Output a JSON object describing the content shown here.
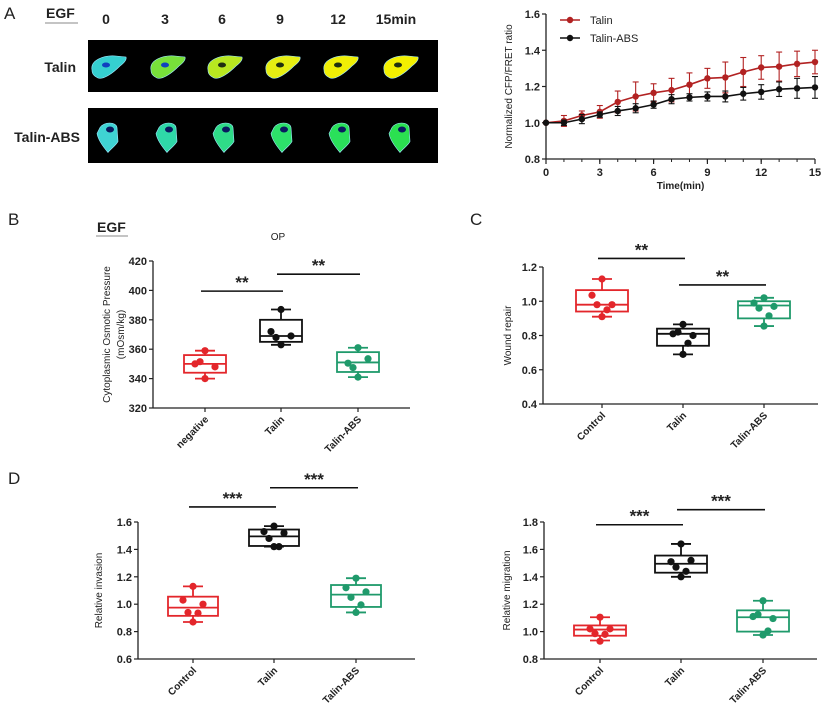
{
  "panels": {
    "a": "A",
    "b": "B",
    "c": "C",
    "d": "D"
  },
  "panel_a_images": {
    "treatment": "EGF",
    "time_labels": [
      "0",
      "3",
      "6",
      "9",
      "12",
      "15min"
    ],
    "rows": [
      {
        "label": "Talin",
        "colors": [
          "#35cfd0",
          "#78e03a",
          "#b8e820",
          "#e6ee12",
          "#f0ef05",
          "#f3f000"
        ]
      },
      {
        "label": "Talin-ABS",
        "colors": [
          "#3fd3d3",
          "#2fd8a8",
          "#2fdc88",
          "#2de06a",
          "#2ae05a",
          "#2be050"
        ]
      }
    ]
  },
  "panel_b_header": "EGF",
  "chart_data": [
    {
      "id": "fret",
      "type": "line",
      "title": "",
      "xlabel": "Time(min)",
      "ylabel": "Normalized CFP/FRET ratio",
      "xlim": [
        0,
        15
      ],
      "ylim": [
        0.8,
        1.6
      ],
      "xticks": [
        "0",
        "3",
        "6",
        "9",
        "12",
        "15"
      ],
      "yticks": [
        "0.8",
        "1.0",
        "1.2",
        "1.4",
        "1.6"
      ],
      "legend": "top-left",
      "x": [
        0,
        1,
        2,
        3,
        4,
        5,
        6,
        7,
        8,
        9,
        10,
        11,
        12,
        13,
        14,
        15
      ],
      "series": [
        {
          "name": "Talin",
          "color": "#b22222",
          "values": [
            1.0,
            1.01,
            1.04,
            1.06,
            1.115,
            1.145,
            1.165,
            1.18,
            1.21,
            1.245,
            1.25,
            1.28,
            1.305,
            1.31,
            1.325,
            1.335
          ],
          "error": [
            0,
            0.03,
            0.025,
            0.035,
            0.06,
            0.08,
            0.05,
            0.065,
            0.065,
            0.055,
            0.085,
            0.08,
            0.065,
            0.08,
            0.07,
            0.065
          ]
        },
        {
          "name": "Talin-ABS",
          "color": "#111111",
          "values": [
            1.0,
            1.0,
            1.02,
            1.045,
            1.065,
            1.08,
            1.1,
            1.13,
            1.14,
            1.145,
            1.145,
            1.16,
            1.17,
            1.185,
            1.19,
            1.195
          ],
          "error": [
            0,
            0.015,
            0.025,
            0.015,
            0.025,
            0.025,
            0.02,
            0.025,
            0.02,
            0.025,
            0.03,
            0.035,
            0.04,
            0.04,
            0.055,
            0.06
          ]
        }
      ]
    },
    {
      "id": "op",
      "type": "box",
      "title": "OP",
      "ylabel": "Cytoplasmic Osmotic Pressure",
      "ylabel2": "(mOsm/kg)",
      "ylim": [
        320,
        420
      ],
      "yticks": [
        "320",
        "340",
        "360",
        "380",
        "400",
        "420"
      ],
      "categories": [
        "negative",
        "Talin",
        "Talin-ABS"
      ],
      "colors": [
        "#e3262b",
        "#111111",
        "#1f9a6b"
      ],
      "boxes": [
        {
          "min": 340,
          "q1": 344,
          "median": 350,
          "q3": 356,
          "max": 359,
          "points": [
            359,
            350,
            348,
            351.5,
            340
          ]
        },
        {
          "min": 363,
          "q1": 365,
          "median": 369,
          "q3": 380,
          "max": 387,
          "points": [
            387,
            372,
            369,
            368,
            363
          ]
        },
        {
          "min": 341,
          "q1": 344.5,
          "median": 351,
          "q3": 358,
          "max": 361,
          "points": [
            361,
            350.5,
            353.5,
            347.5,
            341
          ]
        }
      ],
      "significance": [
        {
          "from": 0,
          "to": 1,
          "y": 399.5,
          "label": "**"
        },
        {
          "from": 1,
          "to": 2,
          "y": 411,
          "label": "**"
        }
      ]
    },
    {
      "id": "wound",
      "type": "box",
      "title": "",
      "ylabel": "Wound repair",
      "ylim": [
        0.4,
        1.2
      ],
      "yticks": [
        "0.4",
        "0.6",
        "0.8",
        "1.0",
        "1.2"
      ],
      "categories": [
        "Control",
        "Talin",
        "Talin-ABS"
      ],
      "colors": [
        "#e3262b",
        "#111111",
        "#1f9a6b"
      ],
      "boxes": [
        {
          "min": 0.91,
          "q1": 0.94,
          "median": 0.98,
          "q3": 1.065,
          "max": 1.13,
          "points": [
            1.13,
            1.035,
            0.98,
            0.98,
            0.95,
            0.91
          ]
        },
        {
          "min": 0.69,
          "q1": 0.74,
          "median": 0.81,
          "q3": 0.84,
          "max": 0.865,
          "points": [
            0.865,
            0.81,
            0.8,
            0.82,
            0.755,
            0.69
          ]
        },
        {
          "min": 0.855,
          "q1": 0.9,
          "median": 0.975,
          "q3": 1.0,
          "max": 1.02,
          "points": [
            1.02,
            0.99,
            0.97,
            0.96,
            0.915,
            0.855
          ]
        }
      ],
      "significance": [
        {
          "from": 0,
          "to": 1,
          "y": 1.25,
          "label": "**"
        },
        {
          "from": 1,
          "to": 2,
          "y": 1.095,
          "label": "**"
        }
      ]
    },
    {
      "id": "invasion",
      "type": "box",
      "title": "",
      "ylabel": "Relative invasion",
      "ylim": [
        0.6,
        1.6
      ],
      "yticks": [
        "0.6",
        "0.8",
        "1.0",
        "1.2",
        "1.4",
        "1.6"
      ],
      "categories": [
        "Control",
        "Talin",
        "Talin-ABS"
      ],
      "colors": [
        "#e3262b",
        "#111111",
        "#1f9a6b"
      ],
      "boxes": [
        {
          "min": 0.87,
          "q1": 0.915,
          "median": 0.975,
          "q3": 1.055,
          "max": 1.13,
          "points": [
            1.13,
            1.03,
            1.0,
            0.94,
            0.935,
            0.87
          ]
        },
        {
          "min": 1.42,
          "q1": 1.425,
          "median": 1.495,
          "q3": 1.545,
          "max": 1.57,
          "points": [
            1.57,
            1.53,
            1.52,
            1.48,
            1.42,
            1.42
          ]
        },
        {
          "min": 0.94,
          "q1": 0.98,
          "median": 1.07,
          "q3": 1.14,
          "max": 1.19,
          "points": [
            1.19,
            1.12,
            1.09,
            1.05,
            0.995,
            0.94
          ]
        }
      ],
      "significance": [
        {
          "from": 0,
          "to": 1,
          "y": 1.71,
          "label": "***"
        },
        {
          "from": 1,
          "to": 2,
          "y": 1.85,
          "label": "***"
        }
      ]
    },
    {
      "id": "migration",
      "type": "box",
      "title": "",
      "ylabel": "Relative migration",
      "ylim": [
        0.8,
        1.8
      ],
      "yticks": [
        "0.8",
        "1.0",
        "1.2",
        "1.4",
        "1.6",
        "1.8"
      ],
      "categories": [
        "Control",
        "Talin",
        "Talin-ABS"
      ],
      "colors": [
        "#e3262b",
        "#111111",
        "#1f9a6b"
      ],
      "boxes": [
        {
          "min": 0.935,
          "q1": 0.97,
          "median": 1.015,
          "q3": 1.045,
          "max": 1.105,
          "points": [
            1.105,
            1.02,
            1.02,
            0.985,
            0.98,
            0.93
          ]
        },
        {
          "min": 1.4,
          "q1": 1.43,
          "median": 1.495,
          "q3": 1.555,
          "max": 1.64,
          "points": [
            1.64,
            1.51,
            1.52,
            1.47,
            1.44,
            1.4
          ]
        },
        {
          "min": 0.975,
          "q1": 1.0,
          "median": 1.105,
          "q3": 1.155,
          "max": 1.225,
          "points": [
            1.225,
            1.11,
            1.095,
            1.125,
            1.005,
            0.975
          ]
        }
      ],
      "significance": [
        {
          "from": 0,
          "to": 1,
          "y": 1.78,
          "label": "***"
        },
        {
          "from": 1,
          "to": 2,
          "y": 1.89,
          "label": "***"
        }
      ]
    }
  ]
}
